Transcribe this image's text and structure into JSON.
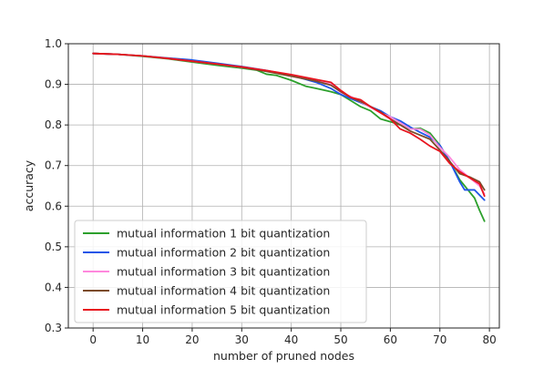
{
  "chart_data": {
    "type": "line",
    "xlabel": "number of pruned nodes",
    "ylabel": "accuracy",
    "xlim": [
      -5,
      82
    ],
    "ylim": [
      0.3,
      1.0
    ],
    "xticks": [
      0,
      10,
      20,
      30,
      40,
      50,
      60,
      70,
      80
    ],
    "yticks": [
      0.3,
      0.4,
      0.5,
      0.6,
      0.7,
      0.8,
      0.9,
      1.0
    ],
    "grid": true,
    "legend_position": "lower-left",
    "series": [
      {
        "name": "mutual information 1 bit quantization",
        "color": "#2ca02c",
        "x": [
          0,
          5,
          10,
          15,
          20,
          25,
          30,
          33,
          35,
          37,
          40,
          43,
          45,
          48,
          50,
          52,
          54,
          56,
          58,
          60,
          62,
          64,
          66,
          68,
          70,
          72,
          74,
          76,
          77,
          78,
          79
        ],
        "y": [
          0.976,
          0.974,
          0.969,
          0.963,
          0.955,
          0.947,
          0.94,
          0.935,
          0.925,
          0.922,
          0.91,
          0.895,
          0.89,
          0.882,
          0.875,
          0.86,
          0.845,
          0.835,
          0.815,
          0.808,
          0.8,
          0.79,
          0.792,
          0.78,
          0.75,
          0.71,
          0.665,
          0.635,
          0.62,
          0.59,
          0.563
        ]
      },
      {
        "name": "mutual information 2 bit quantization",
        "color": "#1f55e8",
        "x": [
          0,
          5,
          10,
          15,
          20,
          25,
          30,
          35,
          40,
          43,
          45,
          48,
          50,
          52,
          55,
          58,
          60,
          62,
          64,
          66,
          68,
          70,
          72,
          74,
          75,
          77,
          79
        ],
        "y": [
          0.976,
          0.974,
          0.97,
          0.965,
          0.96,
          0.952,
          0.944,
          0.934,
          0.922,
          0.912,
          0.905,
          0.89,
          0.875,
          0.865,
          0.85,
          0.835,
          0.82,
          0.81,
          0.795,
          0.782,
          0.77,
          0.75,
          0.71,
          0.66,
          0.64,
          0.64,
          0.615
        ]
      },
      {
        "name": "mutual information 3 bit quantization",
        "color": "#ff88dd",
        "x": [
          0,
          5,
          10,
          15,
          20,
          25,
          30,
          35,
          40,
          45,
          48,
          50,
          52,
          55,
          58,
          60,
          62,
          64,
          66,
          68,
          70,
          72,
          74,
          76,
          78,
          79
        ],
        "y": [
          0.976,
          0.974,
          0.97,
          0.964,
          0.957,
          0.95,
          0.942,
          0.933,
          0.922,
          0.91,
          0.9,
          0.88,
          0.87,
          0.85,
          0.83,
          0.82,
          0.805,
          0.79,
          0.79,
          0.775,
          0.745,
          0.72,
          0.69,
          0.67,
          0.65,
          0.63
        ]
      },
      {
        "name": "mutual information 4 bit quantization",
        "color": "#7b4b2a",
        "x": [
          0,
          5,
          10,
          15,
          20,
          25,
          30,
          35,
          40,
          45,
          48,
          50,
          52,
          55,
          58,
          60,
          62,
          64,
          66,
          68,
          70,
          72,
          74,
          76,
          78,
          79
        ],
        "y": [
          0.976,
          0.974,
          0.97,
          0.964,
          0.957,
          0.95,
          0.942,
          0.932,
          0.92,
          0.908,
          0.898,
          0.882,
          0.868,
          0.852,
          0.832,
          0.815,
          0.8,
          0.785,
          0.775,
          0.765,
          0.738,
          0.71,
          0.68,
          0.672,
          0.66,
          0.64
        ]
      },
      {
        "name": "mutual information 5 bit quantization",
        "color": "#e8141e",
        "x": [
          0,
          5,
          10,
          15,
          20,
          25,
          30,
          35,
          40,
          45,
          48,
          50,
          52,
          54,
          56,
          58,
          60,
          62,
          64,
          66,
          68,
          70,
          72,
          74,
          76,
          78,
          79
        ],
        "y": [
          0.976,
          0.974,
          0.97,
          0.964,
          0.957,
          0.95,
          0.943,
          0.934,
          0.924,
          0.912,
          0.905,
          0.885,
          0.868,
          0.862,
          0.845,
          0.83,
          0.815,
          0.79,
          0.78,
          0.765,
          0.748,
          0.735,
          0.705,
          0.685,
          0.67,
          0.655,
          0.625
        ]
      }
    ]
  }
}
